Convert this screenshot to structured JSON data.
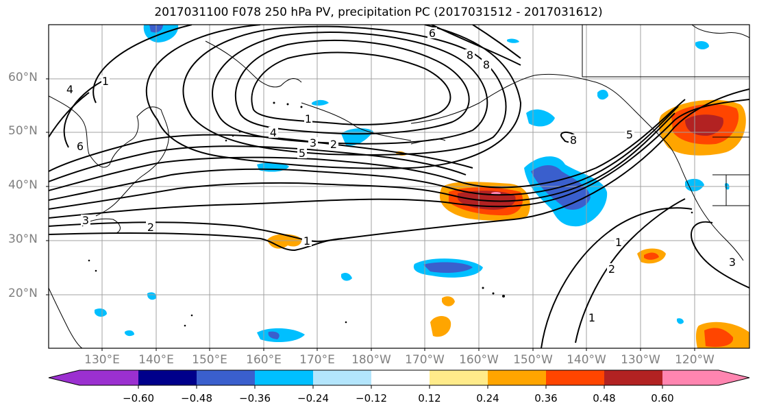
{
  "title": "2017031100 F078 250 hPa PV, precipitation PC (2017031512 - 2017031612)",
  "lat_labels": [
    "60°N",
    "50°N",
    "40°N",
    "30°N",
    "20°N"
  ],
  "lon_labels": [
    "130°E",
    "140°E",
    "150°E",
    "160°E",
    "170°E",
    "180°W",
    "170°W",
    "160°W",
    "150°W",
    "140°W",
    "130°W",
    "120°W"
  ],
  "colorbar": {
    "ticks": [
      "−0.60",
      "−0.48",
      "−0.36",
      "−0.24",
      "−0.12",
      "0.12",
      "0.24",
      "0.36",
      "0.48",
      "0.60"
    ],
    "colors": [
      "#9b30d0",
      "#00008b",
      "#3a5fcd",
      "#00bfff",
      "#b3e5fc",
      "#ffffff",
      "#ffeb8a",
      "#ffa500",
      "#ff4500",
      "#b22222",
      "#ff85b0"
    ]
  },
  "contour_labels": {
    "c_6a": "6",
    "c_8a": "8",
    "c_8b": "8",
    "c_4a": "4",
    "c_1a": "1",
    "c_6b": "6",
    "c_1b": "1",
    "c_3a": "3",
    "c_2a": "2",
    "c_4b": "4",
    "c_5a": "5",
    "c_3b": "3",
    "c_2b": "2",
    "c_1c": "1",
    "c_5b": "5",
    "c_8c": "8",
    "c_1d": "1",
    "c_2c": "2",
    "c_1e": "1",
    "c_3c": "3"
  },
  "chart_data": {
    "type": "map",
    "map_extent": {
      "lon": [
        "120°E",
        "130°W→ ~110°W"
      ],
      "lat": [
        "10°N",
        "70°N"
      ]
    },
    "gridlines": true,
    "fields": [
      "250 hPa PV (black contours, PVU)",
      "precipitation PC (shaded)"
    ],
    "pv_contour_levels": [
      1,
      2,
      3,
      4,
      5,
      6,
      8
    ],
    "colorbar_levels": [
      -0.6,
      -0.48,
      -0.36,
      -0.24,
      -0.12,
      0.12,
      0.24,
      0.36,
      0.48,
      0.6
    ]
  }
}
